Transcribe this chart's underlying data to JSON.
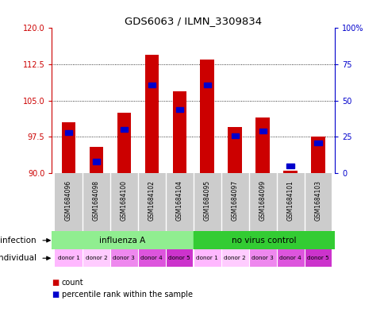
{
  "title": "GDS6063 / ILMN_3309834",
  "samples": [
    "GSM1684096",
    "GSM1684098",
    "GSM1684100",
    "GSM1684102",
    "GSM1684104",
    "GSM1684095",
    "GSM1684097",
    "GSM1684099",
    "GSM1684101",
    "GSM1684103"
  ],
  "count_values": [
    100.5,
    95.5,
    102.5,
    114.5,
    107.0,
    113.5,
    99.5,
    101.5,
    90.5,
    97.5
  ],
  "percentile_values": [
    28,
    8,
    30,
    61,
    44,
    61,
    26,
    29,
    5,
    21
  ],
  "ylim_left": [
    90,
    120
  ],
  "ylim_right": [
    0,
    100
  ],
  "yticks_left": [
    90,
    97.5,
    105,
    112.5,
    120
  ],
  "yticks_right": [
    0,
    25,
    50,
    75,
    100
  ],
  "infection_groups": [
    {
      "label": "influenza A",
      "start": 0,
      "end": 5,
      "color": "#90EE90"
    },
    {
      "label": "no virus control",
      "start": 5,
      "end": 10,
      "color": "#33CC33"
    }
  ],
  "individual_labels": [
    "donor 1",
    "donor 2",
    "donor 3",
    "donor 4",
    "donor 5",
    "donor 1",
    "donor 2",
    "donor 3",
    "donor 4",
    "donor 5"
  ],
  "individual_colors": [
    "#FFB8FF",
    "#FFCCFF",
    "#EE88EE",
    "#DD55DD",
    "#CC33CC",
    "#FFB8FF",
    "#FFCCFF",
    "#EE88EE",
    "#DD55DD",
    "#CC33CC"
  ],
  "bar_color": "#CC0000",
  "percentile_color": "#0000CC",
  "bar_width": 0.5,
  "grid_color": "#000000",
  "left_axis_color": "#CC0000",
  "right_axis_color": "#0000CC",
  "bg_color": "#FFFFFF",
  "plot_bg_color": "#FFFFFF",
  "sample_bg_color": "#CCCCCC",
  "legend_items": [
    {
      "label": "count",
      "color": "#CC0000"
    },
    {
      "label": "percentile rank within the sample",
      "color": "#0000CC"
    }
  ]
}
